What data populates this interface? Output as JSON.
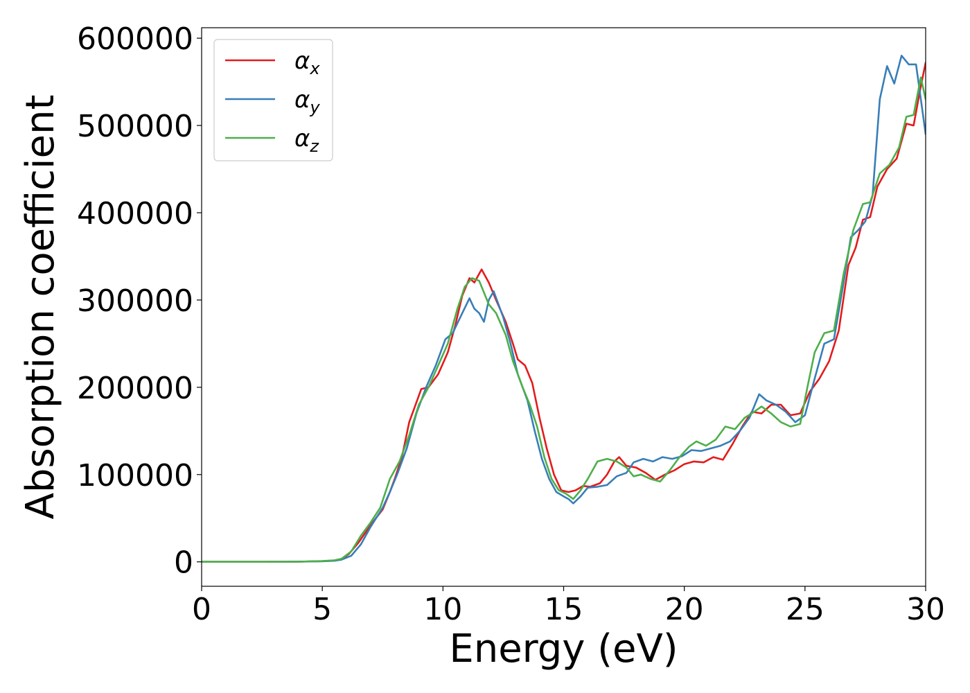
{
  "chart_data": {
    "type": "line",
    "title": "",
    "xlabel": "Energy (eV)",
    "ylabel": "Absorption coefficient",
    "xlim": [
      0,
      30
    ],
    "ylim": [
      -28000,
      612000
    ],
    "xticks": [
      0,
      5,
      10,
      15,
      20,
      25,
      30
    ],
    "yticks": [
      0,
      100000,
      200000,
      300000,
      400000,
      500000,
      600000
    ],
    "grid": false,
    "legend_position": "top-left",
    "series": [
      {
        "name": "α",
        "subscript": "x",
        "color": "#e41a1c",
        "points": [
          [
            0,
            0
          ],
          [
            2,
            0
          ],
          [
            4,
            200
          ],
          [
            5,
            800
          ],
          [
            5.5,
            1500
          ],
          [
            5.8,
            3000
          ],
          [
            6.1,
            9000
          ],
          [
            6.5,
            22000
          ],
          [
            7,
            42000
          ],
          [
            7.5,
            60000
          ],
          [
            7.8,
            80000
          ],
          [
            8,
            95000
          ],
          [
            8.3,
            120000
          ],
          [
            8.6,
            160000
          ],
          [
            8.8,
            175000
          ],
          [
            9.1,
            198000
          ],
          [
            9.4,
            200000
          ],
          [
            9.8,
            215000
          ],
          [
            10.2,
            240000
          ],
          [
            10.5,
            270000
          ],
          [
            10.8,
            305000
          ],
          [
            11.1,
            325000
          ],
          [
            11.3,
            320000
          ],
          [
            11.6,
            335000
          ],
          [
            11.9,
            320000
          ],
          [
            12.2,
            300000
          ],
          [
            12.6,
            275000
          ],
          [
            12.9,
            250000
          ],
          [
            13.1,
            232000
          ],
          [
            13.4,
            225000
          ],
          [
            13.7,
            205000
          ],
          [
            14,
            165000
          ],
          [
            14.3,
            130000
          ],
          [
            14.6,
            100000
          ],
          [
            14.9,
            82000
          ],
          [
            15.2,
            80000
          ],
          [
            15.5,
            82000
          ],
          [
            15.8,
            87000
          ],
          [
            16.1,
            86000
          ],
          [
            16.5,
            90000
          ],
          [
            16.8,
            100000
          ],
          [
            17.1,
            115000
          ],
          [
            17.3,
            120000
          ],
          [
            17.6,
            110000
          ],
          [
            18,
            108000
          ],
          [
            18.4,
            102000
          ],
          [
            18.8,
            94000
          ],
          [
            19.2,
            100000
          ],
          [
            19.6,
            105000
          ],
          [
            20,
            112000
          ],
          [
            20.4,
            115000
          ],
          [
            20.8,
            114000
          ],
          [
            21.2,
            120000
          ],
          [
            21.6,
            117000
          ],
          [
            22,
            135000
          ],
          [
            22.4,
            155000
          ],
          [
            22.8,
            172000
          ],
          [
            23.2,
            170000
          ],
          [
            23.6,
            180000
          ],
          [
            24,
            180000
          ],
          [
            24.4,
            168000
          ],
          [
            24.8,
            170000
          ],
          [
            25.2,
            195000
          ],
          [
            25.6,
            210000
          ],
          [
            26,
            230000
          ],
          [
            26.4,
            265000
          ],
          [
            26.8,
            340000
          ],
          [
            27.1,
            360000
          ],
          [
            27.4,
            392000
          ],
          [
            27.7,
            395000
          ],
          [
            28,
            430000
          ],
          [
            28.4,
            450000
          ],
          [
            28.8,
            462000
          ],
          [
            29.2,
            502000
          ],
          [
            29.5,
            500000
          ],
          [
            29.8,
            545000
          ],
          [
            30,
            572000
          ]
        ]
      },
      {
        "name": "α",
        "subscript": "y",
        "color": "#377eb8",
        "points": [
          [
            0,
            0
          ],
          [
            2,
            0
          ],
          [
            4,
            200
          ],
          [
            5,
            700
          ],
          [
            5.5,
            1200
          ],
          [
            5.8,
            2500
          ],
          [
            6.2,
            7000
          ],
          [
            6.6,
            20000
          ],
          [
            7,
            40000
          ],
          [
            7.5,
            62000
          ],
          [
            7.8,
            80000
          ],
          [
            8.1,
            100000
          ],
          [
            8.5,
            130000
          ],
          [
            8.9,
            170000
          ],
          [
            9.3,
            200000
          ],
          [
            9.7,
            225000
          ],
          [
            10.1,
            255000
          ],
          [
            10.4,
            262000
          ],
          [
            10.8,
            285000
          ],
          [
            11.1,
            302000
          ],
          [
            11.3,
            290000
          ],
          [
            11.5,
            285000
          ],
          [
            11.7,
            275000
          ],
          [
            11.9,
            300000
          ],
          [
            12.1,
            310000
          ],
          [
            12.5,
            280000
          ],
          [
            12.8,
            250000
          ],
          [
            13.1,
            215000
          ],
          [
            13.5,
            185000
          ],
          [
            13.8,
            150000
          ],
          [
            14.1,
            118000
          ],
          [
            14.4,
            95000
          ],
          [
            14.7,
            80000
          ],
          [
            15,
            75000
          ],
          [
            15.2,
            72000
          ],
          [
            15.4,
            67000
          ],
          [
            15.7,
            75000
          ],
          [
            16,
            85000
          ],
          [
            16.4,
            86000
          ],
          [
            16.8,
            88000
          ],
          [
            17.2,
            98000
          ],
          [
            17.6,
            102000
          ],
          [
            17.9,
            114000
          ],
          [
            18.3,
            118000
          ],
          [
            18.7,
            115000
          ],
          [
            19.1,
            120000
          ],
          [
            19.5,
            118000
          ],
          [
            19.9,
            121000
          ],
          [
            20.3,
            128000
          ],
          [
            20.7,
            127000
          ],
          [
            21.1,
            130000
          ],
          [
            21.5,
            133000
          ],
          [
            21.9,
            138000
          ],
          [
            22.3,
            150000
          ],
          [
            22.7,
            165000
          ],
          [
            23.1,
            192000
          ],
          [
            23.4,
            185000
          ],
          [
            23.8,
            180000
          ],
          [
            24.2,
            172000
          ],
          [
            24.6,
            160000
          ],
          [
            25,
            168000
          ],
          [
            25.4,
            210000
          ],
          [
            25.8,
            250000
          ],
          [
            26.2,
            255000
          ],
          [
            26.6,
            320000
          ],
          [
            26.9,
            372000
          ],
          [
            27.2,
            380000
          ],
          [
            27.5,
            390000
          ],
          [
            27.8,
            420000
          ],
          [
            28.1,
            530000
          ],
          [
            28.4,
            568000
          ],
          [
            28.7,
            548000
          ],
          [
            29,
            580000
          ],
          [
            29.3,
            570000
          ],
          [
            29.6,
            570000
          ],
          [
            30,
            490000
          ]
        ]
      },
      {
        "name": "α",
        "subscript": "z",
        "color": "#4daf4a",
        "points": [
          [
            0,
            0
          ],
          [
            2,
            0
          ],
          [
            4,
            200
          ],
          [
            5,
            900
          ],
          [
            5.5,
            1800
          ],
          [
            5.8,
            3500
          ],
          [
            6.2,
            12000
          ],
          [
            6.6,
            30000
          ],
          [
            7,
            45000
          ],
          [
            7.4,
            62000
          ],
          [
            7.8,
            95000
          ],
          [
            8.2,
            115000
          ],
          [
            8.6,
            145000
          ],
          [
            9,
            180000
          ],
          [
            9.4,
            200000
          ],
          [
            9.8,
            225000
          ],
          [
            10.2,
            250000
          ],
          [
            10.6,
            290000
          ],
          [
            10.9,
            315000
          ],
          [
            11.2,
            325000
          ],
          [
            11.5,
            322000
          ],
          [
            11.9,
            295000
          ],
          [
            12.2,
            285000
          ],
          [
            12.6,
            260000
          ],
          [
            12.9,
            230000
          ],
          [
            13.3,
            200000
          ],
          [
            13.6,
            180000
          ],
          [
            13.9,
            155000
          ],
          [
            14.2,
            120000
          ],
          [
            14.5,
            95000
          ],
          [
            14.8,
            82000
          ],
          [
            15.1,
            78000
          ],
          [
            15.4,
            72000
          ],
          [
            15.7,
            82000
          ],
          [
            16,
            95000
          ],
          [
            16.4,
            115000
          ],
          [
            16.8,
            118000
          ],
          [
            17.2,
            115000
          ],
          [
            17.6,
            108000
          ],
          [
            17.9,
            98000
          ],
          [
            18.2,
            100000
          ],
          [
            18.6,
            95000
          ],
          [
            19,
            92000
          ],
          [
            19.4,
            105000
          ],
          [
            19.8,
            120000
          ],
          [
            20.2,
            132000
          ],
          [
            20.5,
            138000
          ],
          [
            20.9,
            133000
          ],
          [
            21.3,
            140000
          ],
          [
            21.7,
            155000
          ],
          [
            22.1,
            152000
          ],
          [
            22.5,
            165000
          ],
          [
            22.9,
            172000
          ],
          [
            23.2,
            178000
          ],
          [
            23.6,
            170000
          ],
          [
            24,
            160000
          ],
          [
            24.4,
            155000
          ],
          [
            24.8,
            158000
          ],
          [
            25.1,
            200000
          ],
          [
            25.4,
            240000
          ],
          [
            25.8,
            262000
          ],
          [
            26.2,
            265000
          ],
          [
            26.6,
            330000
          ],
          [
            27,
            380000
          ],
          [
            27.4,
            410000
          ],
          [
            27.7,
            412000
          ],
          [
            28.1,
            445000
          ],
          [
            28.5,
            455000
          ],
          [
            28.9,
            475000
          ],
          [
            29.2,
            510000
          ],
          [
            29.5,
            512000
          ],
          [
            29.8,
            555000
          ],
          [
            30,
            530000
          ]
        ]
      }
    ]
  }
}
